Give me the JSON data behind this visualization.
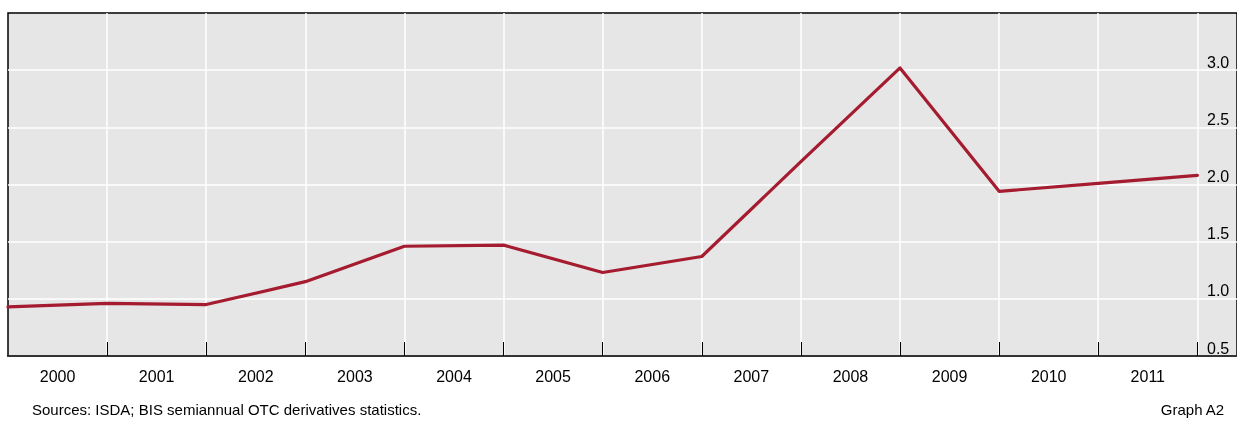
{
  "chart_data": {
    "type": "line",
    "x": [
      2000,
      2001,
      2002,
      2003,
      2004,
      2005,
      2006,
      2007,
      2008,
      2009,
      2010,
      2011,
      2012
    ],
    "series": [
      {
        "color": "#a51c30",
        "values": [
          0.93,
          0.96,
          0.95,
          1.15,
          1.46,
          1.47,
          1.23,
          1.37,
          2.2,
          3.02,
          1.94,
          2.01,
          2.08
        ]
      }
    ],
    "xlim": [
      2000,
      2012.4
    ],
    "xticks": [
      {
        "value": 2000.5,
        "label": "2000"
      },
      {
        "value": 2001.5,
        "label": "2001"
      },
      {
        "value": 2002.5,
        "label": "2002"
      },
      {
        "value": 2003.5,
        "label": "2003"
      },
      {
        "value": 2004.5,
        "label": "2004"
      },
      {
        "value": 2005.5,
        "label": "2005"
      },
      {
        "value": 2006.5,
        "label": "2006"
      },
      {
        "value": 2007.5,
        "label": "2007"
      },
      {
        "value": 2008.5,
        "label": "2008"
      },
      {
        "value": 2009.5,
        "label": "2009"
      },
      {
        "value": 2010.5,
        "label": "2010"
      },
      {
        "value": 2011.5,
        "label": "2011"
      },
      {
        "value": 2001,
        "label": null
      },
      {
        "value": 2002,
        "label": null
      },
      {
        "value": 2003,
        "label": null
      },
      {
        "value": 2004,
        "label": null
      },
      {
        "value": 2005,
        "label": null
      },
      {
        "value": 2006,
        "label": null
      },
      {
        "value": 2007,
        "label": null
      },
      {
        "value": 2008,
        "label": null
      },
      {
        "value": 2009,
        "label": null
      },
      {
        "value": 2010,
        "label": null
      },
      {
        "value": 2011,
        "label": null
      },
      {
        "value": 2012,
        "label": null
      }
    ],
    "ylim": [
      0.5,
      3.5
    ],
    "yticks": [
      {
        "value": 0.5,
        "label": "0.5"
      },
      {
        "value": 1.0,
        "label": "1.0"
      },
      {
        "value": 1.5,
        "label": "1.5"
      },
      {
        "value": 2.0,
        "label": "2.0"
      },
      {
        "value": 2.5,
        "label": "2.5"
      },
      {
        "value": 3.0,
        "label": "3.0"
      }
    ],
    "grid": true,
    "marker": "none",
    "line_style": "solid",
    "annotations": [
      "Sources: ISDA; BIS semiannual OTC derivatives statistics.",
      "Graph A2"
    ]
  }
}
